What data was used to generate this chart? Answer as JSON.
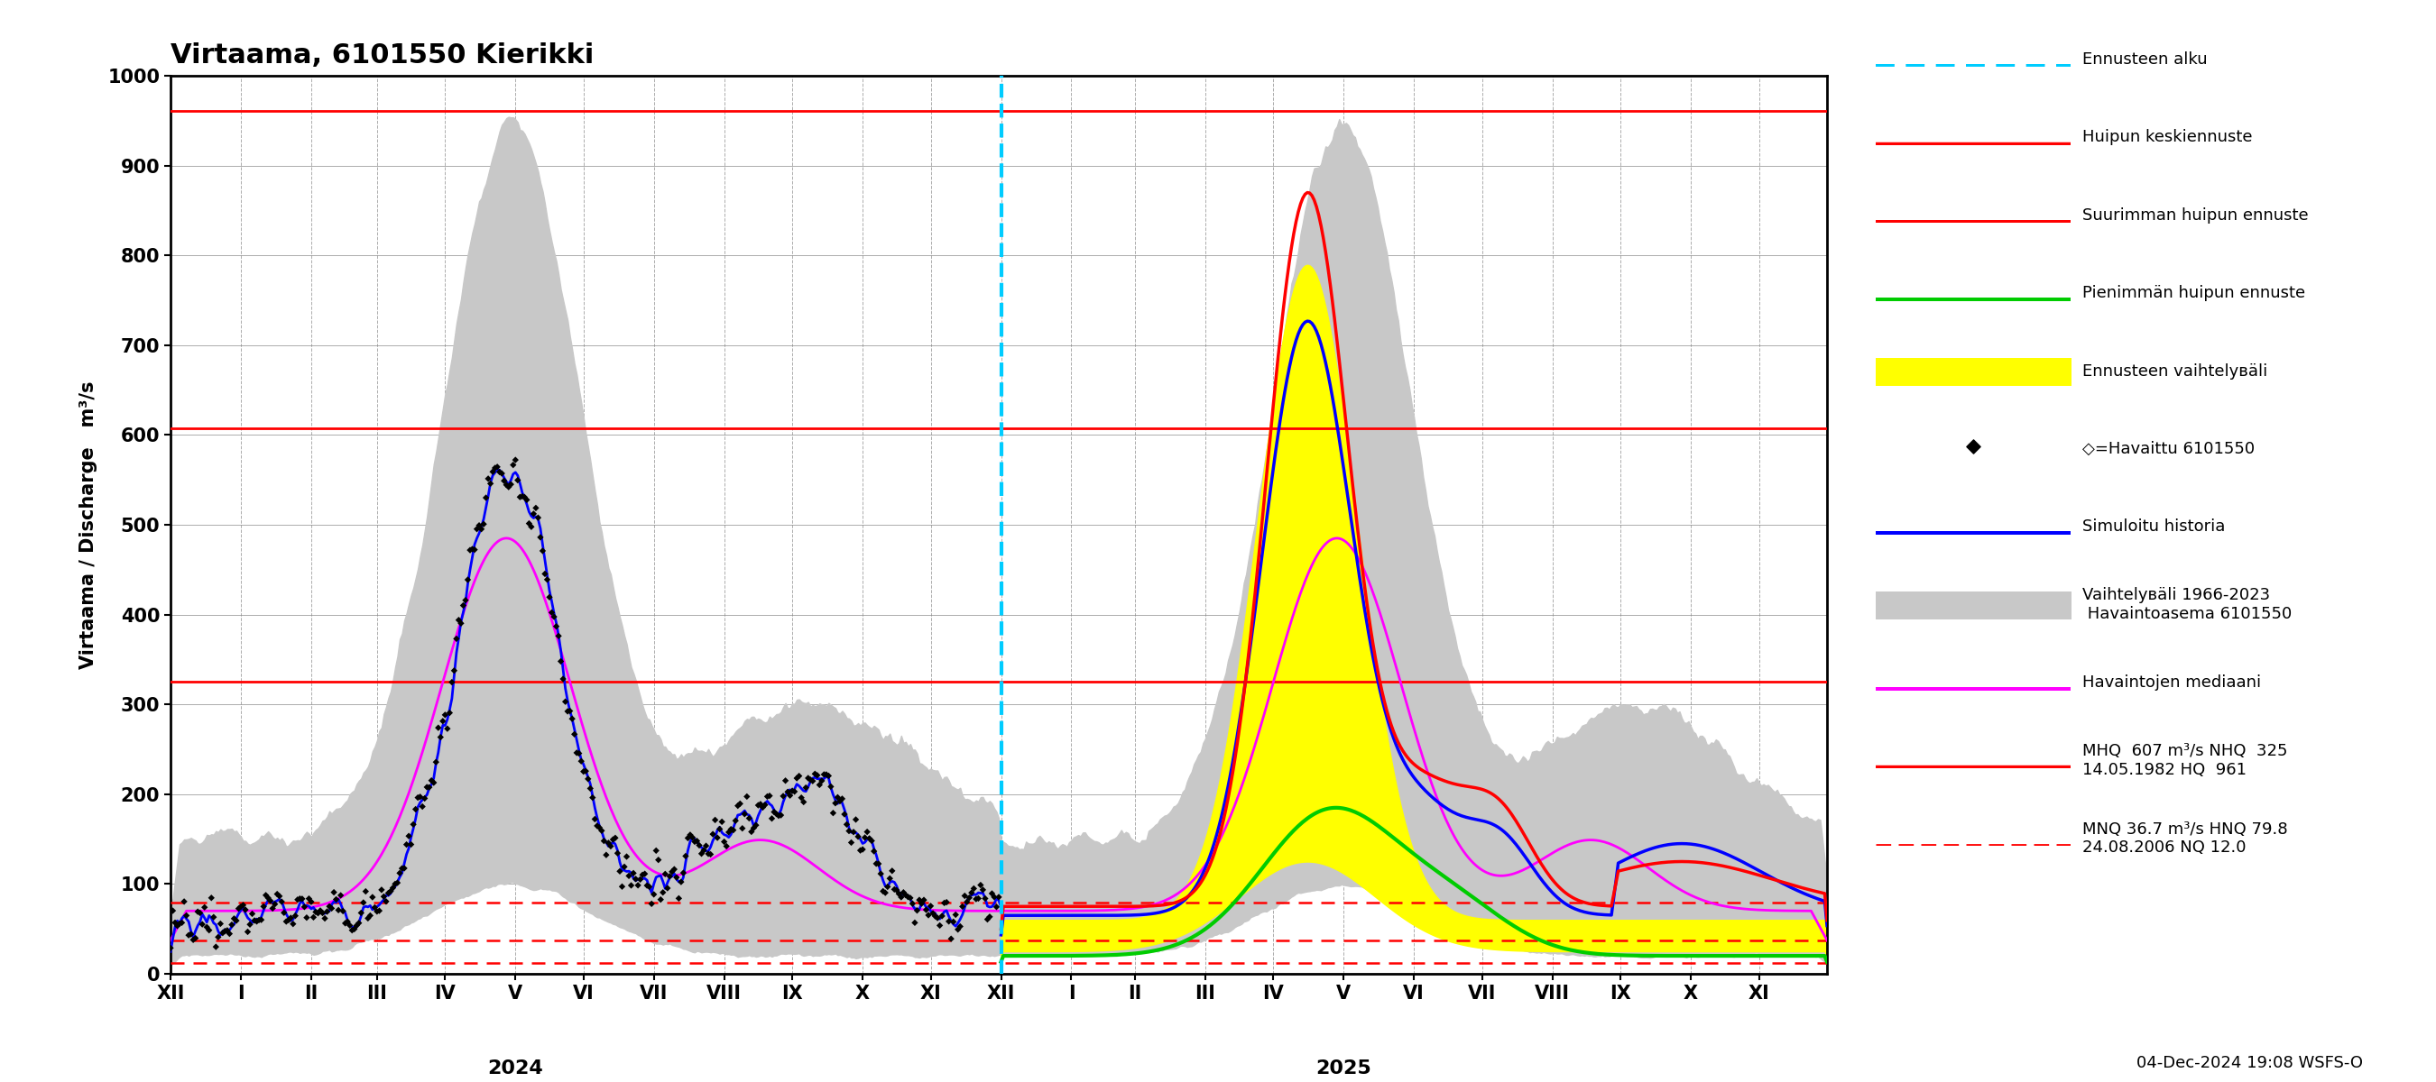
{
  "title": "Virtaama, 6101550 Kierikki",
  "ylabel_left": "Virtaama / Discharge   m³/s",
  "ylim": [
    0,
    1000
  ],
  "yticks": [
    0,
    100,
    200,
    300,
    400,
    500,
    600,
    700,
    800,
    900,
    1000
  ],
  "background_color": "#ffffff",
  "grid_color": "#888888",
  "hq_line": 961,
  "mhq_line": 607,
  "nhq_line": 325,
  "mnq_line": 36.7,
  "hnq_line": 79.8,
  "nq_line": 12.0,
  "footer_text": "04-Dec-2024 19:08 WSFS-O",
  "x_month_labels": [
    "XII",
    "I",
    "II",
    "III",
    "IV",
    "V",
    "VI",
    "VII",
    "VIII",
    "IX",
    "X",
    "XI",
    "XII",
    "I",
    "II",
    "III",
    "IV",
    "V",
    "VI",
    "VII",
    "VIII",
    "IX",
    "X",
    "XI"
  ],
  "colors": {
    "forecast_start": "#00ccff",
    "peak_mean": "#ff0000",
    "peak_min": "#00cc00",
    "forecast_band": "#ffff00",
    "observed": "#000000",
    "simulated": "#0000ff",
    "historical_band": "#c8c8c8",
    "median": "#ff00ff",
    "hq_solid": "#ff0000",
    "hq_dashed": "#ff0000"
  }
}
